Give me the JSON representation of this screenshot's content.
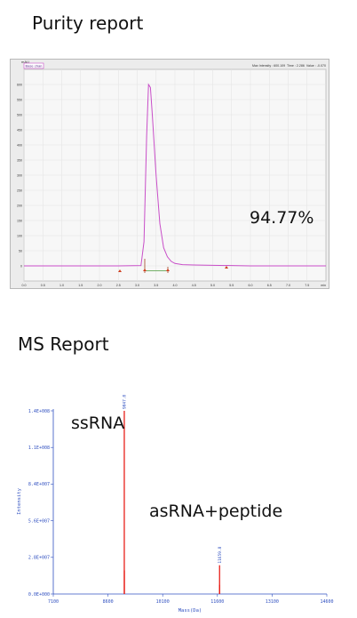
{
  "headings": {
    "purity": "Purity report",
    "ms": "MS Report"
  },
  "annotations": {
    "purity_value": "94.77%",
    "ssrna": "ssRNA",
    "asrna": "asRNA+peptide"
  },
  "colors": {
    "hplc_trace": "#c84ec8",
    "hplc_baseline": "#4a9a3a",
    "ms_peaks": "#e8201a",
    "ms_axis": "#3050c0"
  },
  "chart_data": [
    {
      "type": "line",
      "ylabel": "mAU",
      "xlabel": "min",
      "legend_tag": "Base chan",
      "info": "Max Intensity : 600.109  Time : 2.286  Value : -0.070",
      "xlim": [
        0,
        8.0
      ],
      "ylim": [
        -50,
        650
      ],
      "x_ticks": [
        "0.0",
        "0.5",
        "1.0",
        "1.5",
        "2.0",
        "2.5",
        "3.0",
        "3.5",
        "4.0",
        "4.5",
        "5.0",
        "5.5",
        "6.0",
        "6.5",
        "7.0",
        "7.5"
      ],
      "y_ticks": [
        "0",
        "50",
        "100",
        "150",
        "200",
        "250",
        "300",
        "350",
        "400",
        "450",
        "500",
        "550",
        "600"
      ],
      "grid": true,
      "series": [
        {
          "x": [
            0.0,
            2.5,
            3.1,
            3.18,
            3.25,
            3.3,
            3.35,
            3.4,
            3.5,
            3.6,
            3.7,
            3.8,
            3.9,
            4.0,
            4.2,
            4.5,
            5.0,
            5.5,
            6.0,
            7.0,
            8.0
          ],
          "y": [
            0,
            0,
            1,
            80,
            430,
            600,
            590,
            500,
            300,
            140,
            60,
            30,
            15,
            8,
            4,
            3,
            2,
            1,
            0,
            0,
            0
          ]
        }
      ]
    },
    {
      "type": "bar",
      "xlabel": "Mass(Da)",
      "ylabel": "Intensity",
      "xlim": [
        7100,
        14600
      ],
      "ylim": [
        0,
        140000000
      ],
      "x_ticks": [
        "7100",
        "8600",
        "10100",
        "11600",
        "13100",
        "14600"
      ],
      "y_ticks": [
        "0.0E+000",
        "2.8E+007",
        "5.6E+007",
        "8.4E+007",
        "1.1E+008",
        "1.4E+008"
      ],
      "peaks": [
        {
          "x": 9047.0,
          "y": 140000000,
          "label": "9047.0"
        },
        {
          "x": 9049.0,
          "y": 18000000,
          "label": ""
        },
        {
          "x": 11659.8,
          "y": 22000000,
          "label": "11659.8"
        },
        {
          "x": 11661.5,
          "y": 7000000,
          "label": ""
        }
      ]
    }
  ]
}
